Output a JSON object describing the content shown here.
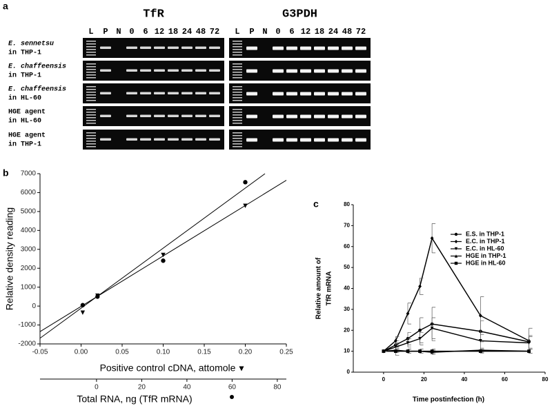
{
  "panel_a": {
    "label": "a",
    "genes": [
      "TfR",
      "G3PDH"
    ],
    "lanes": [
      "L",
      "P",
      "N",
      "0",
      "6",
      "12",
      "18",
      "24",
      "48",
      "72"
    ],
    "rows": [
      {
        "organism": "E. sennetsu",
        "host": "in THP-1"
      },
      {
        "organism": "E. chaffeensis",
        "host": "in THP-1"
      },
      {
        "organism": "E. chaffeensis",
        "host": "in HL-60"
      },
      {
        "organism": "HGE agent",
        "host": "in HL-60"
      },
      {
        "organism": "HGE agent",
        "host": "in THP-1"
      }
    ]
  },
  "chart_data": [
    {
      "type": "scatter",
      "panel_label": "b",
      "ylabel": "Relative density reading",
      "xlabel": "Positive control cDNA, attomole",
      "x2label": "Total RNA, ng (TfR mRNA)",
      "xlim": [
        -0.05,
        0.25
      ],
      "xticks": [
        -0.05,
        {
          "value": 0,
          "label": "0.00"
        },
        0.05,
        {
          "value": 0.1,
          "label": "0.10"
        },
        0.15,
        {
          "value": 0.2,
          "label": "0.20"
        },
        0.25
      ],
      "x2lim": [
        -25,
        84
      ],
      "x2ticks": [
        0,
        20,
        40,
        60,
        80
      ],
      "ylim": [
        -2000,
        7000
      ],
      "yticks": [
        -2000,
        -1000,
        0,
        1000,
        2000,
        3000,
        4000,
        5000,
        6000,
        7000
      ],
      "series": [
        {
          "marker": "triangle-down",
          "color": "#000",
          "x": [
            0.002,
            0.02,
            0.1,
            0.2
          ],
          "y": [
            -350,
            550,
            2700,
            5300
          ]
        },
        {
          "marker": "circle",
          "color": "#000",
          "x": [
            0.002,
            0.02,
            0.1,
            0.2
          ],
          "y": [
            50,
            500,
            2400,
            6550
          ]
        }
      ],
      "fit_lines": [
        {
          "x": [
            -0.05,
            0.224
          ],
          "y": [
            -1700,
            7000
          ]
        },
        {
          "x": [
            -0.05,
            0.25
          ],
          "y": [
            -1350,
            6650
          ]
        }
      ]
    },
    {
      "type": "line",
      "panel_label": "c",
      "ylabel": [
        "Relative amount of",
        "TfR mRNA"
      ],
      "xlabel": "Time postinfection (h)",
      "xlim": [
        -15,
        80
      ],
      "xticks": [
        0,
        20,
        40,
        60,
        80
      ],
      "ylim": [
        0,
        80
      ],
      "yticks": [
        0,
        10,
        20,
        30,
        40,
        50,
        60,
        70,
        80
      ],
      "x": [
        0,
        6,
        12,
        18,
        24,
        48,
        72
      ],
      "series": [
        {
          "name": "E.S. in THP-1",
          "marker": "circle",
          "color": "#000",
          "values": [
            10,
            13,
            16,
            20,
            23,
            19.5,
            14.5
          ],
          "errors": [
            0,
            2,
            3,
            6,
            8,
            5,
            3
          ]
        },
        {
          "name": "E.C. in THP-1",
          "marker": "diamond",
          "color": "#000",
          "values": [
            10,
            15,
            28,
            41,
            64,
            27,
            15
          ],
          "errors": [
            0,
            2,
            5,
            4,
            7,
            9,
            6
          ]
        },
        {
          "name": "E.C. in HL-60",
          "marker": "triangle-down",
          "color": "#000",
          "values": [
            10,
            12,
            14,
            16,
            21,
            15,
            14
          ],
          "errors": [
            0,
            2,
            2,
            3,
            5,
            4,
            3
          ]
        },
        {
          "name": "HGE in THP-1",
          "marker": "triangle-up",
          "color": "#000",
          "values": [
            10,
            10.5,
            10,
            10,
            9.5,
            10.5,
            10
          ],
          "errors": [
            0,
            1,
            1,
            1,
            1,
            1,
            1
          ]
        },
        {
          "name": "HGE in HL-60",
          "marker": "square",
          "color": "#000",
          "values": [
            10,
            10,
            10,
            10,
            10,
            10,
            10
          ],
          "errors": [
            0,
            2,
            1,
            1,
            1,
            1,
            1
          ]
        }
      ],
      "legend": "upper right"
    }
  ]
}
